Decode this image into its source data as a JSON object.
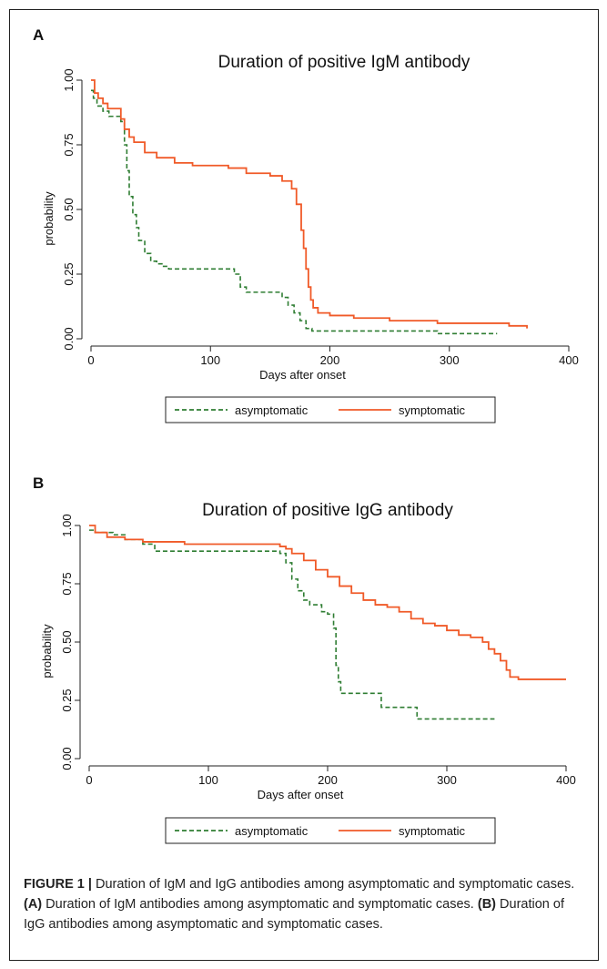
{
  "colors": {
    "asymptomatic": "#2e7d32",
    "symptomatic": "#f05a28"
  },
  "chart_data": [
    {
      "type": "line",
      "panel_label": "A",
      "title": "Duration of positive IgM antibody",
      "xlabel": "Days after onset",
      "ylabel": "probability",
      "xlim": [
        0,
        400
      ],
      "ylim": [
        0,
        1
      ],
      "xticks": [
        "0",
        "100",
        "200",
        "300",
        "400"
      ],
      "yticks": [
        "0.00",
        "0.25",
        "0.50",
        "0.75",
        "1.00"
      ],
      "grid": false,
      "legend_position": "bottom",
      "series": [
        {
          "name": "asymptomatic",
          "style": "dashed",
          "x": [
            0,
            2,
            5,
            10,
            15,
            20,
            25,
            28,
            30,
            32,
            35,
            38,
            40,
            45,
            50,
            55,
            60,
            65,
            70,
            75,
            100,
            110,
            120,
            125,
            130,
            135,
            150,
            160,
            165,
            170,
            175,
            180,
            185,
            250,
            290,
            340
          ],
          "y": [
            0.96,
            0.93,
            0.9,
            0.88,
            0.86,
            0.86,
            0.84,
            0.75,
            0.65,
            0.55,
            0.48,
            0.43,
            0.38,
            0.33,
            0.3,
            0.29,
            0.28,
            0.27,
            0.27,
            0.27,
            0.27,
            0.27,
            0.25,
            0.2,
            0.18,
            0.18,
            0.18,
            0.16,
            0.13,
            0.1,
            0.07,
            0.04,
            0.03,
            0.03,
            0.02,
            0.02
          ]
        },
        {
          "name": "symptomatic",
          "style": "solid",
          "x": [
            0,
            3,
            6,
            10,
            14,
            18,
            22,
            25,
            28,
            32,
            36,
            45,
            55,
            70,
            85,
            100,
            115,
            130,
            150,
            160,
            168,
            172,
            176,
            178,
            180,
            182,
            184,
            186,
            190,
            200,
            220,
            250,
            290,
            340,
            350,
            365
          ],
          "y": [
            1.0,
            0.95,
            0.93,
            0.91,
            0.89,
            0.89,
            0.89,
            0.85,
            0.81,
            0.78,
            0.76,
            0.72,
            0.7,
            0.68,
            0.67,
            0.67,
            0.66,
            0.64,
            0.63,
            0.61,
            0.58,
            0.52,
            0.42,
            0.35,
            0.27,
            0.2,
            0.15,
            0.12,
            0.1,
            0.09,
            0.08,
            0.07,
            0.06,
            0.06,
            0.05,
            0.04
          ]
        }
      ]
    },
    {
      "type": "line",
      "panel_label": "B",
      "title": "Duration of positive IgG antibody",
      "xlabel": "Days after onset",
      "ylabel": "probability",
      "xlim": [
        0,
        400
      ],
      "ylim": [
        0,
        1
      ],
      "xticks": [
        "0",
        "100",
        "200",
        "300",
        "400"
      ],
      "yticks": [
        "0.00",
        "0.25",
        "0.50",
        "0.75",
        "1.00"
      ],
      "grid": false,
      "legend_position": "bottom",
      "series": [
        {
          "name": "asymptomatic",
          "style": "dashed",
          "x": [
            0,
            5,
            20,
            30,
            45,
            55,
            60,
            100,
            150,
            160,
            165,
            170,
            175,
            180,
            185,
            195,
            200,
            205,
            207,
            209,
            211,
            220,
            240,
            245,
            270,
            275,
            300,
            340
          ],
          "y": [
            0.98,
            0.97,
            0.96,
            0.94,
            0.92,
            0.89,
            0.89,
            0.89,
            0.89,
            0.88,
            0.84,
            0.77,
            0.72,
            0.68,
            0.66,
            0.63,
            0.62,
            0.56,
            0.4,
            0.33,
            0.28,
            0.28,
            0.28,
            0.22,
            0.22,
            0.17,
            0.17,
            0.17
          ]
        },
        {
          "name": "symptomatic",
          "style": "solid",
          "x": [
            0,
            5,
            15,
            30,
            45,
            60,
            80,
            100,
            130,
            150,
            160,
            165,
            170,
            180,
            190,
            200,
            210,
            220,
            230,
            240,
            250,
            260,
            270,
            280,
            290,
            300,
            310,
            320,
            330,
            335,
            340,
            345,
            350,
            353,
            360,
            370,
            400
          ],
          "y": [
            1.0,
            0.97,
            0.95,
            0.94,
            0.93,
            0.93,
            0.92,
            0.92,
            0.92,
            0.92,
            0.91,
            0.9,
            0.88,
            0.85,
            0.81,
            0.78,
            0.74,
            0.71,
            0.68,
            0.66,
            0.65,
            0.63,
            0.6,
            0.58,
            0.57,
            0.55,
            0.53,
            0.52,
            0.5,
            0.47,
            0.45,
            0.42,
            0.38,
            0.35,
            0.34,
            0.34,
            0.34
          ]
        }
      ]
    }
  ],
  "caption": {
    "label": "FIGURE 1 |",
    "intro": " Duration of IgM and IgG antibodies among asymptomatic and symptomatic cases. ",
    "a_label": "(A)",
    "a_text": " Duration of IgM antibodies among asymptomatic and symptomatic cases. ",
    "b_label": "(B)",
    "b_text": " Duration of IgG antibodies among asymptomatic and symptomatic cases."
  }
}
